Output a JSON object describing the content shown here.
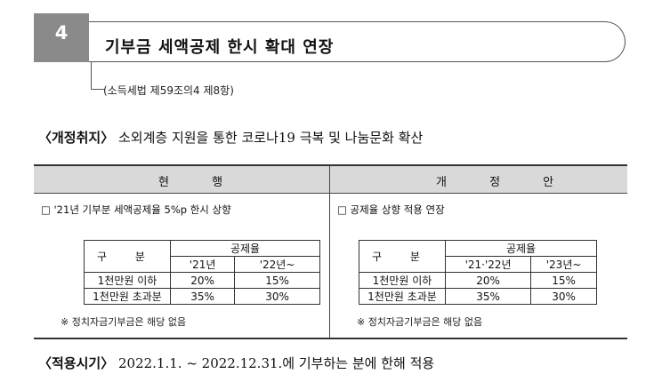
{
  "header": {
    "number": "4",
    "title": "기부금 세액공제 한시 확대 연장",
    "law_ref": "(소득세법 제59조의4 제8항)"
  },
  "purpose": {
    "label": "〈개정취지〉",
    "text": "소외계층 지원을 통한 코로나19 극복 및 나눔문화 확산"
  },
  "table": {
    "current_header": "현 행",
    "revised_header": "개 정 안",
    "current": {
      "bullet": "□ '21년 기부분 세액공제율 5%p 한시 상향",
      "sub_header_gubun": "구 분",
      "sub_header_rate": "공제율",
      "years": [
        "'21년",
        "'22년~"
      ],
      "rows": [
        {
          "label": "1천만원 이하",
          "values": [
            "20%",
            "15%"
          ]
        },
        {
          "label": "1천만원 초과분",
          "values": [
            "35%",
            "30%"
          ]
        }
      ],
      "note": "※ 정치자금기부금은 해당 없음"
    },
    "revised": {
      "bullet": "□ 공제율 상향 적용 연장",
      "sub_header_gubun": "구 분",
      "sub_header_rate": "공제율",
      "years": [
        "'21·'22년",
        "'23년~"
      ],
      "rows": [
        {
          "label": "1천만원 이하",
          "values": [
            "20%",
            "15%"
          ]
        },
        {
          "label": "1천만원 초과분",
          "values": [
            "35%",
            "30%"
          ]
        }
      ],
      "note": "※ 정치자금기부금은 해당 없음"
    }
  },
  "apply": {
    "label": "〈적용시기〉",
    "text": "2022.1.1. ~ 2022.12.31.에 기부하는 분에 한해 적용"
  }
}
